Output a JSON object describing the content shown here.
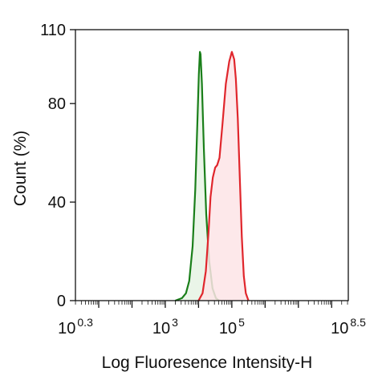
{
  "chart_data": {
    "type": "area",
    "xlabel": "Log Fluoresence Intensity-H",
    "ylabel": "Count  (%)",
    "xscale": "log10",
    "xlim": [
      0.3,
      8.5
    ],
    "ylim": [
      0,
      110
    ],
    "x_ticks": [
      {
        "base": "10",
        "exp": "0.3",
        "value": 0.3
      },
      {
        "base": "10",
        "exp": "3",
        "value": 3
      },
      {
        "base": "10",
        "exp": "5",
        "value": 5
      },
      {
        "base": "10",
        "exp": "8.5",
        "value": 8.5
      }
    ],
    "y_ticks": [
      {
        "label": "0",
        "value": 0
      },
      {
        "label": "40",
        "value": 40
      },
      {
        "label": "80",
        "value": 80
      },
      {
        "label": "110",
        "value": 110
      }
    ],
    "grid": false,
    "legend": "none",
    "series": [
      {
        "color": "#1a7f1a",
        "fill": "#e6f3e4",
        "points": [
          [
            3.3,
            0
          ],
          [
            3.5,
            1
          ],
          [
            3.62,
            3
          ],
          [
            3.72,
            8
          ],
          [
            3.82,
            22
          ],
          [
            3.9,
            45
          ],
          [
            3.97,
            75
          ],
          [
            4.01,
            92
          ],
          [
            4.04,
            101
          ],
          [
            4.06,
            100
          ],
          [
            4.1,
            88
          ],
          [
            4.16,
            62
          ],
          [
            4.23,
            35
          ],
          [
            4.32,
            16
          ],
          [
            4.42,
            5
          ],
          [
            4.52,
            1
          ],
          [
            4.62,
            0
          ]
        ]
      },
      {
        "color": "#e0262c",
        "fill": "#fde4e6",
        "points": [
          [
            4.0,
            0
          ],
          [
            4.12,
            3
          ],
          [
            4.22,
            12
          ],
          [
            4.3,
            28
          ],
          [
            4.36,
            42
          ],
          [
            4.43,
            50
          ],
          [
            4.5,
            54
          ],
          [
            4.56,
            55
          ],
          [
            4.63,
            58
          ],
          [
            4.72,
            72
          ],
          [
            4.82,
            88
          ],
          [
            4.92,
            97
          ],
          [
            5.0,
            101
          ],
          [
            5.07,
            98
          ],
          [
            5.12,
            90
          ],
          [
            5.18,
            74
          ],
          [
            5.24,
            50
          ],
          [
            5.3,
            26
          ],
          [
            5.36,
            10
          ],
          [
            5.42,
            3
          ],
          [
            5.5,
            0
          ]
        ]
      }
    ]
  }
}
